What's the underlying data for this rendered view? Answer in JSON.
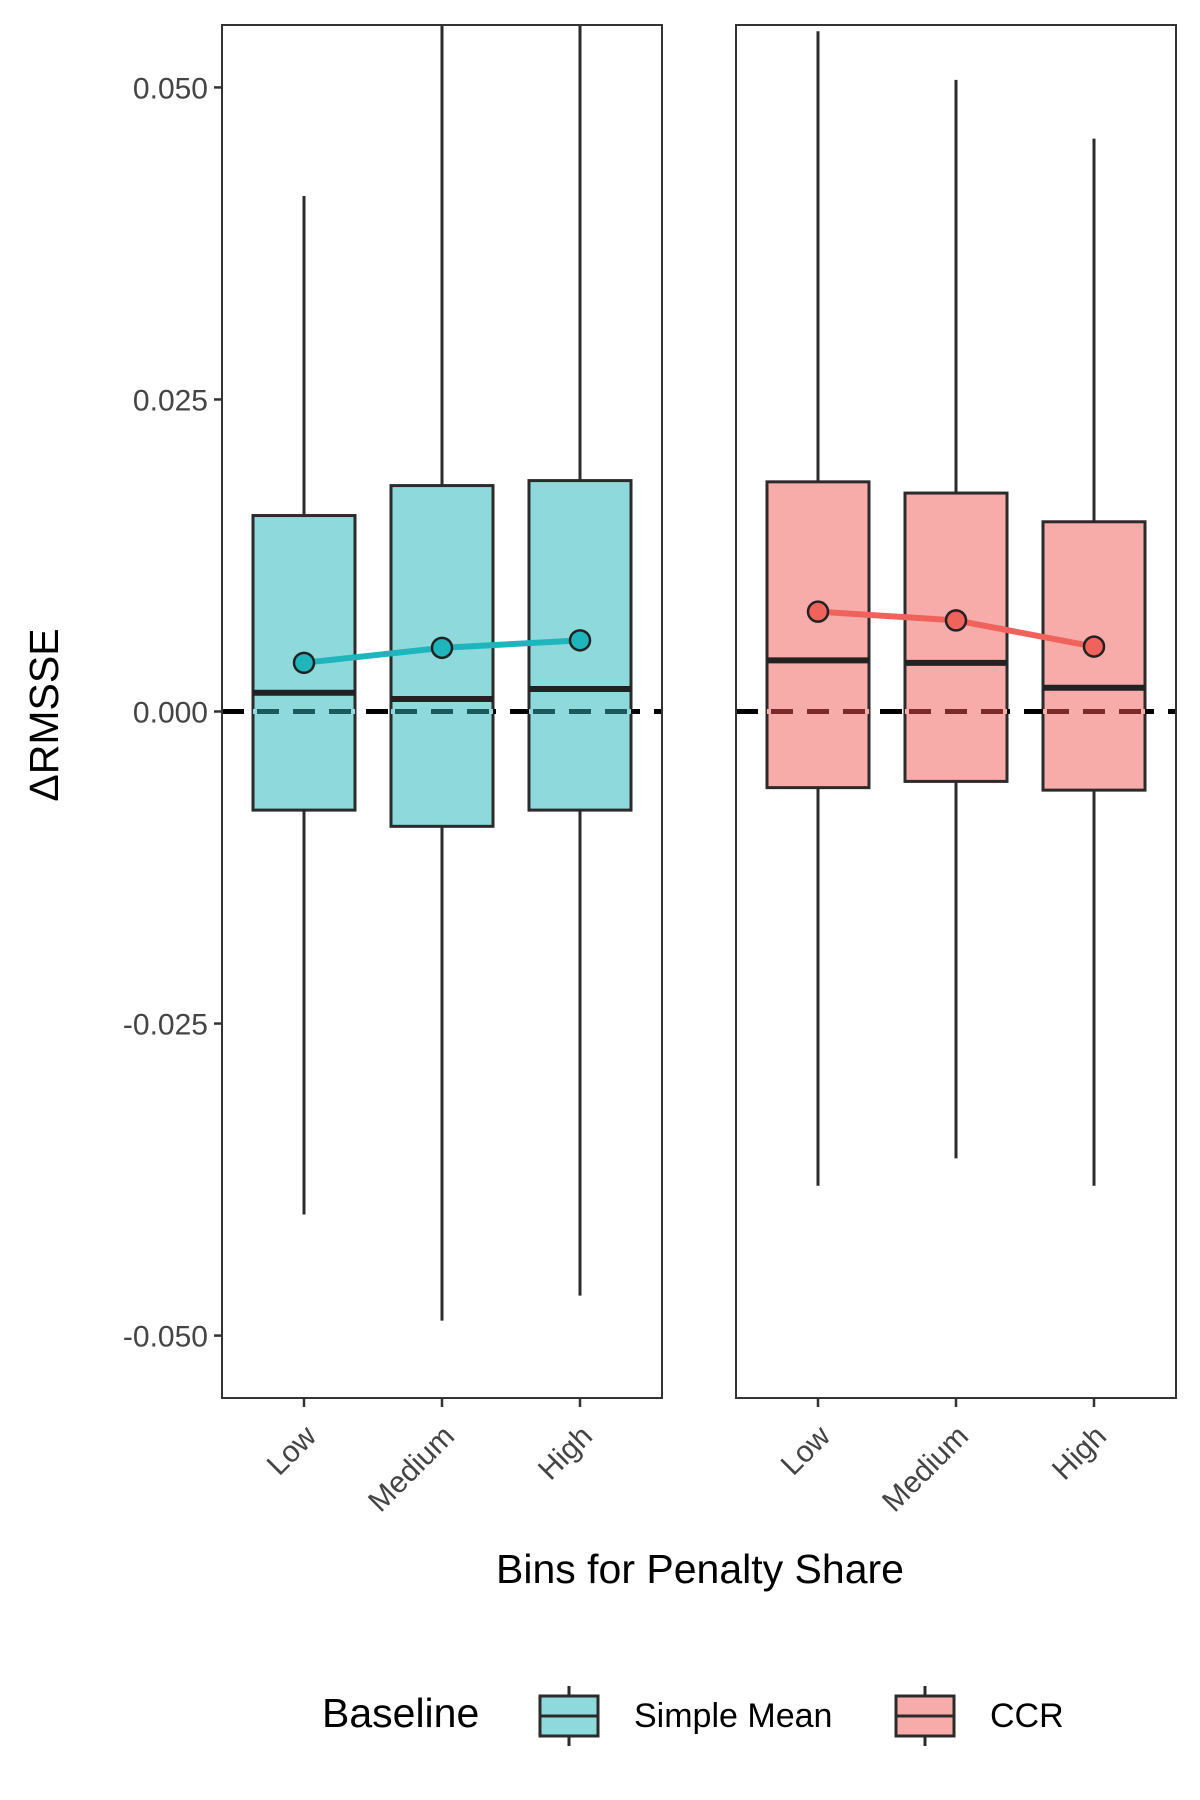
{
  "chart_data": {
    "type": "boxplot",
    "xlabel": "Bins for Penalty Share",
    "ylabel": "ΔRMSSE",
    "ylim": [
      -0.055,
      0.055
    ],
    "yticks": [
      -0.05,
      -0.025,
      0.0,
      0.025,
      0.05
    ],
    "ytick_labels": [
      "-0.050",
      "-0.025",
      "0.000",
      "0.025",
      "0.050"
    ],
    "reference_line": 0.0,
    "categories": [
      "Low",
      "Medium",
      "High"
    ],
    "legend": {
      "title": "Baseline",
      "position": "bottom",
      "entries": [
        {
          "label": "Simple Mean",
          "color": "#8DD9DC"
        },
        {
          "label": "CCR",
          "color": "#F8ACAA"
        }
      ]
    },
    "panels": [
      {
        "baseline": "Simple Mean",
        "fill": "#8DD9DC",
        "line_color": "#1EB6BC",
        "boxes": [
          {
            "category": "Low",
            "whisker_low": -0.0403,
            "q1": -0.0079,
            "median": 0.0015,
            "q3": 0.0157,
            "whisker_high": 0.0413,
            "mean": 0.0039
          },
          {
            "category": "Medium",
            "whisker_low": -0.0488,
            "q1": -0.0092,
            "median": 0.001,
            "q3": 0.0181,
            "whisker_high": 0.055,
            "mean": 0.0051
          },
          {
            "category": "High",
            "whisker_low": -0.0468,
            "q1": -0.0079,
            "median": 0.0018,
            "q3": 0.0185,
            "whisker_high": 0.055,
            "mean": 0.0057
          }
        ]
      },
      {
        "baseline": "CCR",
        "fill": "#F8ACAA",
        "line_color": "#F0625C",
        "boxes": [
          {
            "category": "Low",
            "whisker_low": -0.038,
            "q1": -0.0061,
            "median": 0.0041,
            "q3": 0.0184,
            "whisker_high": 0.0545,
            "mean": 0.008
          },
          {
            "category": "Medium",
            "whisker_low": -0.0358,
            "q1": -0.0056,
            "median": 0.0039,
            "q3": 0.0175,
            "whisker_high": 0.0506,
            "mean": 0.0073
          },
          {
            "category": "High",
            "whisker_low": -0.038,
            "q1": -0.0063,
            "median": 0.0019,
            "q3": 0.0152,
            "whisker_high": 0.0459,
            "mean": 0.0052
          }
        ]
      }
    ]
  }
}
